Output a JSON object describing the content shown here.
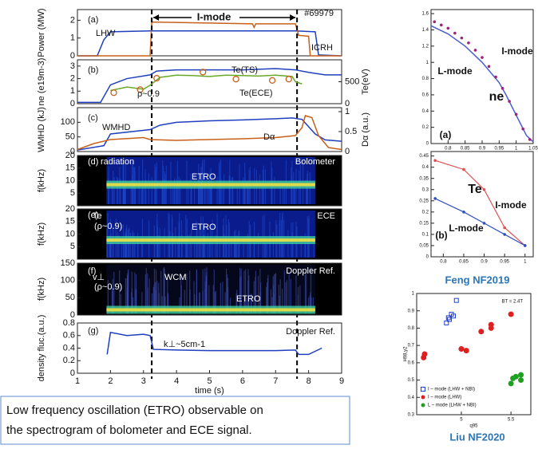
{
  "chart_data": [
    {
      "type": "line",
      "ylabel": "Power (MW)",
      "xlim": [
        1,
        9
      ],
      "ylim": [
        0,
        2.6
      ],
      "yticks": [
        0,
        1,
        2
      ],
      "vlines": [
        3.25,
        7.65
      ],
      "annotations": [
        "(a)",
        "LHW",
        "I-mode",
        "#69979",
        "ICRH"
      ],
      "series": [
        {
          "color": "#1f3fbf",
          "marker": "none",
          "x": [
            1,
            1.6,
            1.8,
            2.0,
            3.2,
            5,
            7.6,
            8.2,
            8.3,
            9
          ],
          "values": [
            0,
            0,
            0.9,
            1.35,
            1.4,
            1.4,
            1.4,
            1.35,
            0.05,
            0
          ]
        },
        {
          "color": "#c8601a",
          "marker": "none",
          "x": [
            1,
            3.2,
            3.25,
            6.3,
            6.35,
            6.4,
            7.6,
            7.7,
            8.0,
            8.05,
            9
          ],
          "values": [
            0,
            0,
            1.9,
            1.8,
            1.6,
            1.8,
            1.8,
            1.15,
            1.1,
            0,
            0
          ]
        }
      ]
    },
    {
      "type": "line",
      "ylabel": "ne (e19m-3)",
      "y2label": "Te(eV)",
      "xlim": [
        1,
        9
      ],
      "ylim": [
        0,
        3.5
      ],
      "yticks": [
        0,
        1,
        2,
        3
      ],
      "y2lim": [
        0,
        1000
      ],
      "y2ticks": [
        0,
        500
      ],
      "annotations": [
        "(b)",
        "Te(TS)",
        "Te(ECE)",
        "ρ~0.9"
      ],
      "series": [
        {
          "color": "#1f3fbf",
          "marker": "none",
          "x": [
            1,
            1.7,
            2.0,
            2.5,
            3.2,
            3.4,
            4,
            5,
            6,
            7,
            7.6,
            8,
            8.5,
            9
          ],
          "values": [
            0.1,
            0.1,
            1.5,
            2.0,
            2.3,
            2.6,
            2.7,
            2.7,
            2.7,
            2.8,
            2.7,
            2.5,
            2.3,
            2.3
          ]
        },
        {
          "color": "#6aa829",
          "marker": "none",
          "axis": "y2",
          "x": [
            2,
            2.5,
            3,
            3.2,
            3.5,
            4,
            4.5,
            5,
            5.5,
            6,
            6.5,
            7,
            7.5,
            7.6,
            7.8
          ],
          "values": [
            300,
            380,
            330,
            420,
            600,
            650,
            640,
            620,
            650,
            640,
            630,
            650,
            620,
            500,
            450
          ]
        },
        {
          "color": "#c8601a",
          "marker": "ring",
          "axis": "y2",
          "x": [
            2.1,
            2.9,
            3.4,
            4.8,
            5.8,
            6.9,
            7.4
          ],
          "values": [
            250,
            320,
            580,
            720,
            560,
            530,
            560
          ]
        }
      ]
    },
    {
      "type": "line",
      "ylabel": "WMHD (kJ)",
      "y2label": "Dα (a.u.)",
      "xlim": [
        1,
        9
      ],
      "ylim": [
        0,
        150
      ],
      "yticks": [
        0,
        50,
        100
      ],
      "y2lim": [
        0,
        1.1
      ],
      "y2ticks": [
        0,
        0.5,
        1
      ],
      "annotations": [
        "(c)",
        "WMHD",
        "Dα"
      ],
      "series": [
        {
          "color": "#1f3fbf",
          "marker": "none",
          "x": [
            1,
            1.8,
            2,
            3.2,
            3.5,
            4,
            5,
            6,
            7,
            7.5,
            7.8,
            8.2,
            8.5,
            9
          ],
          "values": [
            5,
            20,
            60,
            75,
            90,
            100,
            105,
            108,
            112,
            115,
            110,
            60,
            40,
            35
          ]
        },
        {
          "color": "#c8601a",
          "marker": "none",
          "axis": "y2",
          "x": [
            1,
            1.5,
            2,
            3,
            3.2,
            4,
            5,
            6,
            7,
            7.6,
            7.8,
            7.9,
            8.1,
            8.3,
            8.6,
            9
          ],
          "values": [
            0.05,
            0.2,
            0.3,
            0.35,
            0.3,
            0.28,
            0.3,
            0.32,
            0.35,
            0.4,
            0.6,
            0.9,
            0.85,
            0.4,
            0.1,
            0.05
          ]
        }
      ]
    },
    {
      "type": "spectrogram",
      "ylabel": "f(kHz)",
      "xlim": [
        1,
        9
      ],
      "ylim": [
        0,
        20
      ],
      "yticks": [
        5,
        10,
        15,
        20
      ],
      "annotations": [
        "(d)",
        "radiation",
        "Bolometer",
        "ETRO"
      ],
      "series": []
    },
    {
      "type": "spectrogram",
      "ylabel": "f(kHz)",
      "xlim": [
        1,
        9
      ],
      "ylim": [
        0,
        20
      ],
      "yticks": [
        5,
        10,
        15,
        20
      ],
      "annotations": [
        "(e)",
        "Te",
        "(ρ~0.9)",
        "ECE",
        "ETRO"
      ],
      "series": []
    },
    {
      "type": "spectrogram",
      "ylabel": "f(kHz)",
      "xlim": [
        1,
        9
      ],
      "ylim": [
        0,
        150
      ],
      "yticks": [
        0,
        50,
        100,
        150
      ],
      "annotations": [
        "(f)",
        "v⊥",
        "(ρ~0.9)",
        "Doppler Ref.",
        "WCM",
        "ETRO"
      ],
      "series": []
    },
    {
      "type": "line",
      "ylabel": "density fluc.(a.u.)",
      "xlabel": "time (s)",
      "xlim": [
        1,
        9
      ],
      "xticks": [
        1,
        2,
        3,
        4,
        5,
        6,
        7,
        8,
        9
      ],
      "ylim": [
        0,
        0.8
      ],
      "yticks": [
        0,
        0.2,
        0.4,
        0.6,
        0.8
      ],
      "annotations": [
        "(g)",
        "k⊥~5cm-1",
        "Doppler Ref."
      ],
      "series": [
        {
          "color": "#1f3fbf",
          "marker": "none",
          "x": [
            1.9,
            2,
            2.5,
            3,
            3.2,
            3.3,
            4,
            5,
            6,
            7,
            7.6,
            7.7,
            8,
            8.4
          ],
          "values": [
            0.3,
            0.65,
            0.6,
            0.62,
            0.6,
            0.38,
            0.37,
            0.36,
            0.36,
            0.36,
            0.37,
            0.3,
            0.3,
            0.4
          ]
        }
      ]
    },
    {
      "type": "line",
      "xlim": [
        0.75,
        1.05
      ],
      "xticks": [
        0.8,
        0.85,
        0.9,
        0.95,
        1,
        1.05
      ],
      "ylim": [
        0,
        1.65
      ],
      "yticks": [
        0,
        0.2,
        0.4,
        0.6,
        0.8,
        1,
        1.2,
        1.4,
        1.6
      ],
      "annotations": [
        "L-mode",
        "I-mode",
        "ne",
        "(a)"
      ],
      "series": [
        {
          "color": "#4a5fd0",
          "marker": "none",
          "x": [
            0.75,
            0.8,
            0.85,
            0.9,
            0.95,
            0.97,
            1,
            1.03,
            1.05
          ],
          "values": [
            1.45,
            1.35,
            1.2,
            1.0,
            0.75,
            0.6,
            0.35,
            0.1,
            0.02
          ]
        },
        {
          "color": "#a0207a",
          "marker": "circle",
          "x": [
            0.76,
            0.78,
            0.8,
            0.82,
            0.84,
            0.86,
            0.88,
            0.9,
            0.92,
            0.94,
            0.96,
            0.98,
            1,
            1.02,
            1.04
          ],
          "values": [
            1.5,
            1.46,
            1.42,
            1.36,
            1.3,
            1.24,
            1.15,
            1.06,
            0.95,
            0.82,
            0.68,
            0.52,
            0.36,
            0.18,
            0.05
          ]
        }
      ]
    },
    {
      "type": "line",
      "xlim": [
        0.77,
        1.02
      ],
      "xticks": [
        0.8,
        0.85,
        0.9,
        0.95,
        1
      ],
      "ylim": [
        0,
        0.47
      ],
      "yticks": [
        0,
        0.05,
        0.1,
        0.15,
        0.2,
        0.25,
        0.3,
        0.35,
        0.4,
        0.45
      ],
      "annotations": [
        "Te",
        "I-mode",
        "L-mode",
        "(b)"
      ],
      "series": [
        {
          "color": "#e05050",
          "marker": "circle",
          "x": [
            0.78,
            0.85,
            0.9,
            0.95,
            1
          ],
          "values": [
            0.43,
            0.39,
            0.3,
            0.13,
            0.05
          ]
        },
        {
          "color": "#3050c0",
          "marker": "circle",
          "x": [
            0.78,
            0.85,
            0.9,
            0.95,
            1
          ],
          "values": [
            0.26,
            0.2,
            0.15,
            0.1,
            0.05
          ]
        }
      ]
    },
    {
      "type": "scatter",
      "ylabel": "H98,y2",
      "xlabel": "q95",
      "xlim": [
        4.55,
        5.7
      ],
      "xticks": [
        5,
        5.5
      ],
      "ylim": [
        0.3,
        1.0
      ],
      "yticks": [
        0.3,
        0.4,
        0.5,
        0.6,
        0.7,
        0.8,
        0.9,
        1
      ],
      "annotations": [
        "BT = 2.4T"
      ],
      "series": [
        {
          "name": "I – mode  (LHW + NBI)",
          "color": "#2040d0",
          "marker": "square",
          "x": [
            4.85,
            4.87,
            4.9,
            4.88,
            4.92,
            4.95
          ],
          "values": [
            0.83,
            0.86,
            0.88,
            0.85,
            0.87,
            0.96
          ]
        },
        {
          "name": "I – mode  (LHW)",
          "color": "#e02020",
          "marker": "circle",
          "x": [
            4.62,
            4.63,
            5.0,
            5.05,
            5.2,
            5.3,
            5.3,
            5.5
          ],
          "values": [
            0.63,
            0.65,
            0.68,
            0.67,
            0.78,
            0.8,
            0.82,
            0.88
          ]
        },
        {
          "name": "L – mode  (LHW + NBI)",
          "color": "#20a020",
          "marker": "circle",
          "x": [
            5.5,
            5.52,
            5.55,
            5.6,
            5.6
          ],
          "values": [
            0.48,
            0.51,
            0.52,
            0.5,
            0.53
          ]
        }
      ]
    }
  ],
  "captions": [
    "Feng NF2019",
    "Liu NF2020"
  ],
  "text_box": {
    "lines": [
      "Low frequency oscillation (ETRO) observable on",
      "the spectrogram of bolometer and ECE signal."
    ]
  }
}
